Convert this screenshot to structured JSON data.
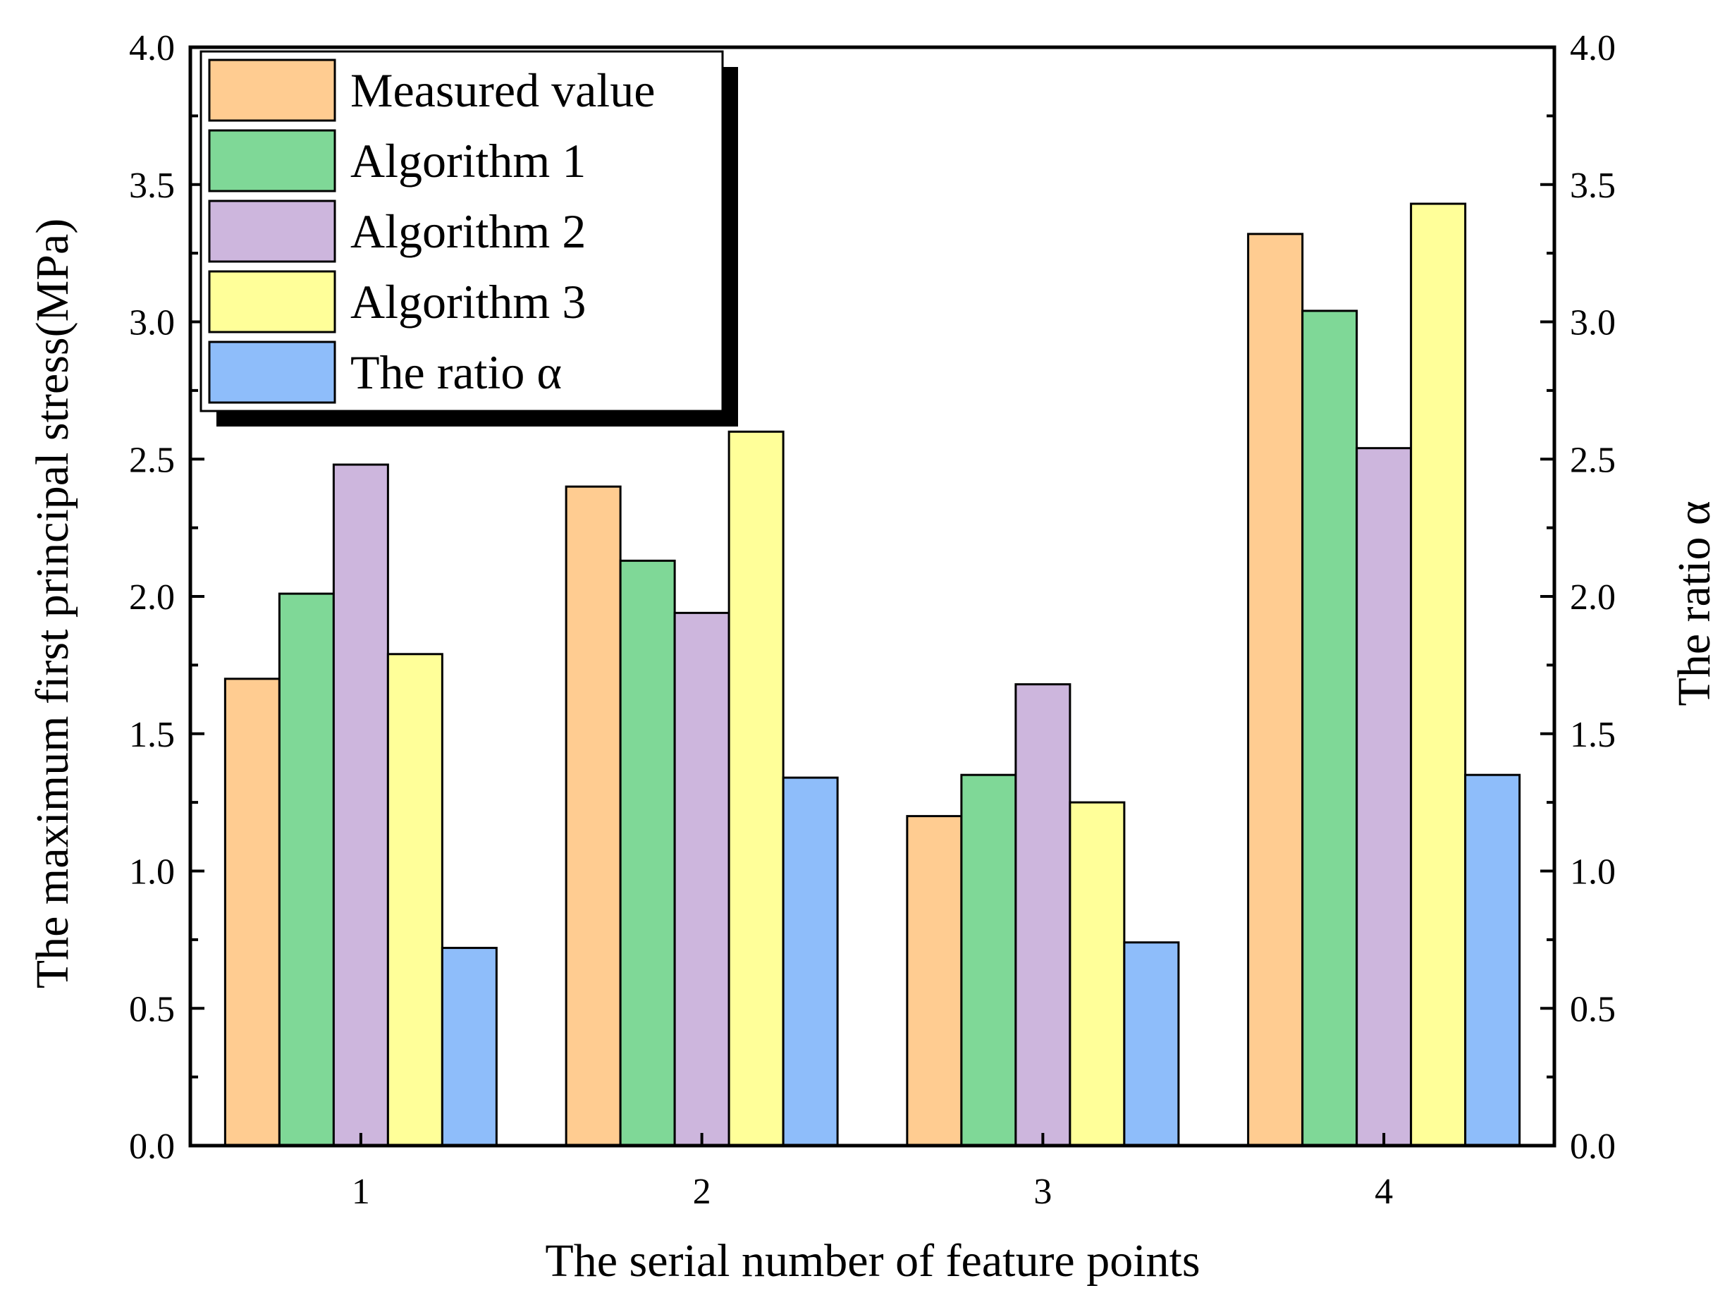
{
  "chart_data": {
    "type": "bar",
    "categories": [
      "1",
      "2",
      "3",
      "4"
    ],
    "series": [
      {
        "name": "Measured value",
        "axis": "left",
        "color": "#FFCC91",
        "values": [
          1.7,
          2.4,
          1.2,
          3.32
        ]
      },
      {
        "name": "Algorithm 1",
        "axis": "left",
        "color": "#7FD897",
        "values": [
          2.01,
          2.13,
          1.35,
          3.04
        ]
      },
      {
        "name": "Algorithm 2",
        "axis": "left",
        "color": "#CDB6DD",
        "values": [
          2.48,
          1.94,
          1.68,
          2.54
        ]
      },
      {
        "name": "Algorithm 3",
        "axis": "left",
        "color": "#FFFF99",
        "values": [
          1.79,
          2.6,
          1.25,
          3.43
        ]
      },
      {
        "name": "The ratio α",
        "axis": "right",
        "color": "#8EBDFA",
        "values": [
          0.72,
          1.34,
          0.74,
          1.35
        ]
      }
    ],
    "xlabel": "The serial number of feature points",
    "ylabel": "The maximum first principal stress(MPa)",
    "y2label": "The ratio α",
    "ylim": [
      0,
      4
    ],
    "y2lim": [
      0,
      4
    ],
    "yticks": [
      "0.0",
      "0.5",
      "1.0",
      "1.5",
      "2.0",
      "2.5",
      "3.0",
      "3.5",
      "4.0"
    ],
    "y2ticks": [
      "0.0",
      "0.5",
      "1.0",
      "1.5",
      "2.0",
      "2.5",
      "3.0",
      "3.5",
      "4.0"
    ],
    "grid": false,
    "legend_position": "top-left"
  }
}
